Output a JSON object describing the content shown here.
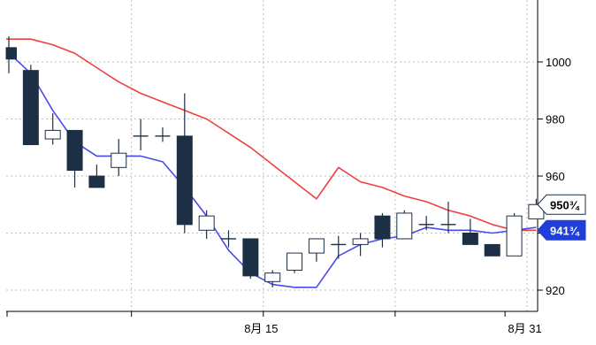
{
  "chart_data": {
    "type": "candlestick",
    "title": "",
    "xlabel": "",
    "ylabel": "",
    "grid": true,
    "ylim": [
      910,
      1030
    ],
    "y_ticks": [
      920,
      940,
      960,
      980,
      1000
    ],
    "y_tick_labels": [
      "920",
      "",
      "960",
      "980",
      "1000"
    ],
    "x_tick_labels": [
      {
        "label": "8月 15",
        "index": 11
      },
      {
        "label": "8月 31",
        "index": 23
      }
    ],
    "colors": {
      "up_fill": "#ffffff",
      "down_fill": "#1c2f45",
      "candle_edge": "#1c2f45",
      "fast_ma": "#4a4aee",
      "slow_ma": "#ee4040",
      "grid": "#bdbdbd"
    },
    "candles": [
      {
        "open": 1005,
        "high": 1009,
        "low": 996,
        "close": 1001
      },
      {
        "open": 997,
        "high": 999,
        "low": 971,
        "close": 971
      },
      {
        "open": 973,
        "high": 982,
        "low": 971,
        "close": 976
      },
      {
        "open": 976,
        "high": 976,
        "low": 956,
        "close": 962
      },
      {
        "open": 960,
        "high": 964,
        "low": 956,
        "close": 956
      },
      {
        "open": 963,
        "high": 973,
        "low": 960,
        "close": 968
      },
      {
        "open": 974,
        "high": 980,
        "low": 969,
        "close": 974
      },
      {
        "open": 974,
        "high": 977,
        "low": 972,
        "close": 974
      },
      {
        "open": 974,
        "high": 989,
        "low": 940,
        "close": 943
      },
      {
        "open": 941,
        "high": 948,
        "low": 938,
        "close": 946
      },
      {
        "open": 938,
        "high": 941,
        "low": 935,
        "close": 938
      },
      {
        "open": 938,
        "high": 938,
        "low": 924,
        "close": 925
      },
      {
        "open": 923,
        "high": 927,
        "low": 921,
        "close": 926
      },
      {
        "open": 927,
        "high": 933,
        "low": 926,
        "close": 933
      },
      {
        "open": 933,
        "high": 938,
        "low": 930,
        "close": 938
      },
      {
        "open": 936,
        "high": 939,
        "low": 931,
        "close": 936
      },
      {
        "open": 936,
        "high": 940,
        "low": 932,
        "close": 938
      },
      {
        "open": 946,
        "high": 947,
        "low": 935,
        "close": 938
      },
      {
        "open": 938,
        "high": 948,
        "low": 938,
        "close": 947
      },
      {
        "open": 943,
        "high": 946,
        "low": 941,
        "close": 943
      },
      {
        "open": 943,
        "high": 951,
        "low": 940,
        "close": 943
      },
      {
        "open": 940,
        "high": 945,
        "low": 936,
        "close": 936
      },
      {
        "open": 936,
        "high": 936,
        "low": 932,
        "close": 932
      },
      {
        "open": 932,
        "high": 947,
        "low": 932,
        "close": 946
      },
      {
        "open": 945,
        "high": 952,
        "low": 945,
        "close": 950
      }
    ],
    "series": [
      {
        "values": [
          1004,
          996,
          983,
          972,
          967,
          967,
          967,
          965,
          956,
          946,
          934,
          926,
          922,
          921,
          921,
          932,
          936,
          938,
          939,
          942,
          941,
          941,
          940,
          941,
          942
        ]
      },
      {
        "values": [
          1008,
          1008,
          1006,
          1003,
          998,
          993,
          989,
          986,
          983,
          980,
          975,
          970,
          964,
          958,
          952,
          963,
          958,
          956,
          953,
          951,
          948,
          946,
          943,
          941,
          941
        ]
      }
    ],
    "price_labels": [
      {
        "text": "950¾",
        "value": 950,
        "color": "#1c2f45"
      },
      {
        "text": "941¾",
        "value": 941,
        "color": "#1f3fd8"
      }
    ]
  }
}
